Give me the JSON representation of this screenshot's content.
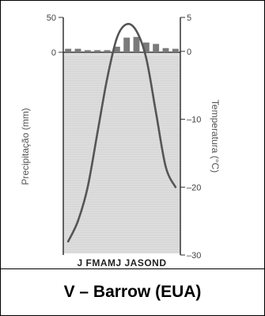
{
  "caption": "V – Barrow (EUA)",
  "chart_data": {
    "type": "climogram",
    "station": "V – Barrow (EUA)",
    "months": [
      "J",
      "F",
      "M",
      "A",
      "M",
      "J",
      "J",
      "A",
      "S",
      "O",
      "N",
      "D"
    ],
    "month_label_text": "J FMAMJ JASOND",
    "precipitation": {
      "ylabel": "Precipitação (mm)",
      "ylim": [
        0,
        50
      ],
      "ticks": [
        0,
        50
      ],
      "values": [
        5,
        5,
        3,
        3,
        3,
        8,
        21,
        22,
        14,
        12,
        6,
        5
      ]
    },
    "temperature": {
      "ylabel": "Temperatura (°C)",
      "ylim": [
        -30,
        5
      ],
      "ticks": [
        5,
        0,
        -10,
        -20,
        -30
      ],
      "values": [
        -28,
        -25,
        -20,
        -12,
        -4,
        2,
        4,
        3,
        -1,
        -9,
        -17,
        -20
      ]
    },
    "colors": {
      "background": "#dedede",
      "precip_bar": "#7a7a7a",
      "temp_line": "#555555",
      "axis": "#333333"
    }
  }
}
